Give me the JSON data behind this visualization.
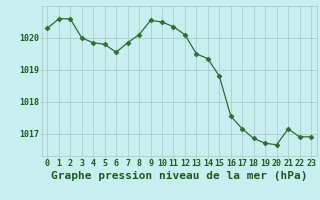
{
  "x": [
    0,
    1,
    2,
    3,
    4,
    5,
    6,
    7,
    8,
    9,
    10,
    11,
    12,
    13,
    14,
    15,
    16,
    17,
    18,
    19,
    20,
    21,
    22,
    23
  ],
  "y": [
    1020.3,
    1020.6,
    1020.6,
    1020.0,
    1019.85,
    1019.8,
    1019.55,
    1019.85,
    1020.1,
    1020.55,
    1020.5,
    1020.35,
    1020.1,
    1019.5,
    1019.35,
    1018.8,
    1017.55,
    1017.15,
    1016.85,
    1016.7,
    1016.65,
    1017.15,
    1016.9,
    1016.9
  ],
  "line_color": "#2d6e2d",
  "marker": "D",
  "marker_size": 2.5,
  "bg_color": "#c8eef0",
  "grid_color": "#b0cccc",
  "xlabel": "Graphe pression niveau de la mer (hPa)",
  "xlabel_color": "#1a5c1a",
  "xlabel_fontsize": 8,
  "tick_color": "#1a5c1a",
  "tick_fontsize": 6,
  "yticks": [
    1017,
    1018,
    1019,
    1020
  ],
  "ylim": [
    1016.3,
    1021.0
  ],
  "xlim": [
    -0.5,
    23.5
  ],
  "xticks": [
    0,
    1,
    2,
    3,
    4,
    5,
    6,
    7,
    8,
    9,
    10,
    11,
    12,
    13,
    14,
    15,
    16,
    17,
    18,
    19,
    20,
    21,
    22,
    23
  ]
}
